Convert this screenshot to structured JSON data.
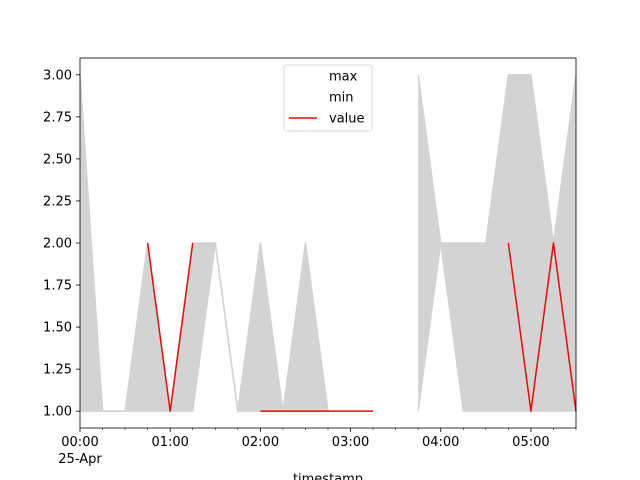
{
  "chart_data": {
    "type": "area",
    "title": "",
    "xlabel": "timestamp",
    "ylabel": "",
    "x_unit": "time",
    "x": [
      "00:00",
      "00:15",
      "00:30",
      "00:45",
      "01:00",
      "01:15",
      "01:30",
      "01:45",
      "02:00",
      "02:15",
      "02:30",
      "02:45",
      "03:00",
      "03:15",
      "03:30",
      "03:45",
      "04:00",
      "04:15",
      "04:30",
      "04:45",
      "05:00",
      "05:15",
      "05:30"
    ],
    "series": [
      {
        "name": "max",
        "color": "#d3d3d3",
        "values": [
          3.0,
          1.0,
          1.0,
          2.0,
          1.0,
          2.0,
          2.0,
          1.0,
          2.0,
          1.0,
          2.0,
          1.0,
          null,
          null,
          null,
          3.0,
          2.0,
          2.0,
          2.0,
          3.0,
          3.0,
          2.0,
          3.0
        ]
      },
      {
        "name": "min",
        "color": "#d3d3d3",
        "values": [
          1.0,
          1.0,
          1.0,
          1.0,
          1.0,
          1.0,
          2.0,
          1.0,
          1.0,
          1.0,
          1.0,
          1.0,
          null,
          null,
          null,
          1.0,
          2.0,
          1.0,
          1.0,
          1.0,
          1.0,
          1.0,
          1.0
        ]
      },
      {
        "name": "value",
        "color": "#ff0000",
        "values": [
          null,
          null,
          null,
          2.0,
          1.0,
          2.0,
          null,
          null,
          1.0,
          1.0,
          1.0,
          1.0,
          1.0,
          1.0,
          null,
          null,
          null,
          null,
          null,
          2.0,
          1.0,
          2.0,
          1.0
        ]
      }
    ],
    "xticks": [
      {
        "x": "00:00",
        "label": "00:00",
        "sublabel": "25-Apr"
      },
      {
        "x": "01:00",
        "label": "01:00",
        "sublabel": ""
      },
      {
        "x": "02:00",
        "label": "02:00",
        "sublabel": ""
      },
      {
        "x": "03:00",
        "label": "03:00",
        "sublabel": ""
      },
      {
        "x": "04:00",
        "label": "04:00",
        "sublabel": ""
      },
      {
        "x": "05:00",
        "label": "05:00",
        "sublabel": ""
      }
    ],
    "yticks": [
      "1.00",
      "1.25",
      "1.50",
      "1.75",
      "2.00",
      "2.25",
      "2.50",
      "2.75",
      "3.00"
    ],
    "xlim": [
      "00:00",
      "05:30"
    ],
    "ylim": [
      0.9,
      3.1
    ],
    "grid": false,
    "legend": {
      "placement": "upper-center",
      "entries": [
        "max",
        "min",
        "value"
      ]
    }
  }
}
